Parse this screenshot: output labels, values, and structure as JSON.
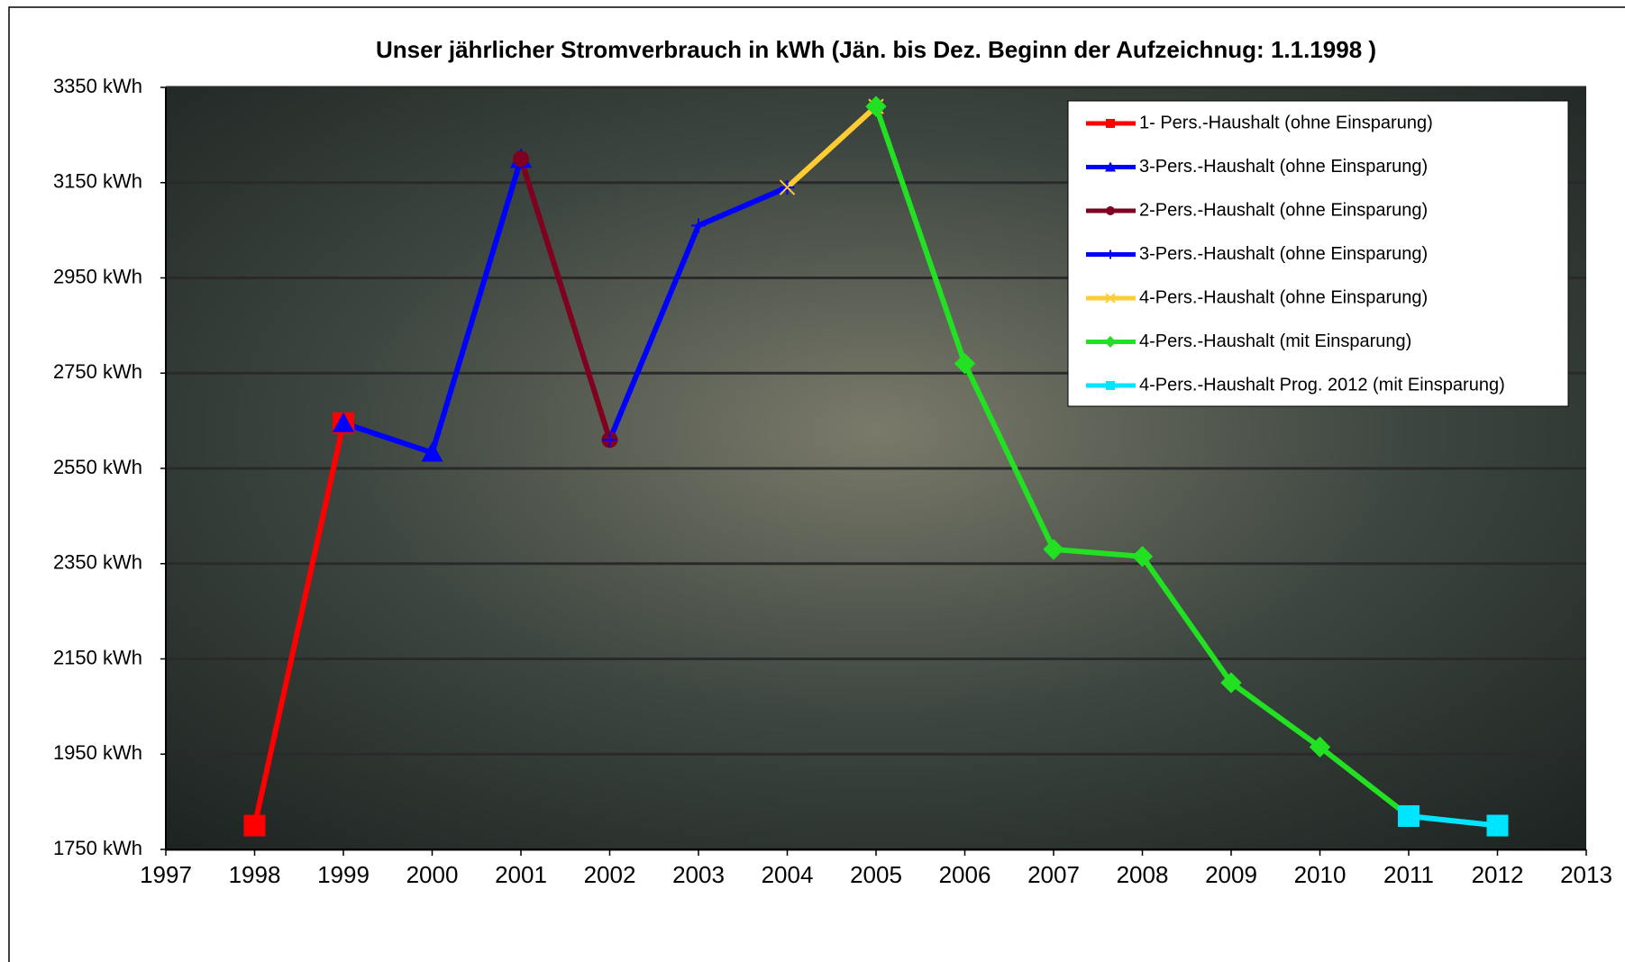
{
  "chart_data": {
    "type": "line",
    "title": "Unser jährlicher Stromverbrauch in kWh (Jän. bis Dez.  Beginn der Aufzeichnug: 1.1.1998 )",
    "x": [
      1998,
      1999,
      2000,
      2001,
      2002,
      2003,
      2004,
      2005,
      2006,
      2007,
      2008,
      2009,
      2010,
      2011,
      2012
    ],
    "xlim": [
      1997,
      2013
    ],
    "xticks": [
      1997,
      1998,
      1999,
      2000,
      2001,
      2002,
      2003,
      2004,
      2005,
      2006,
      2007,
      2008,
      2009,
      2010,
      2011,
      2012,
      2013
    ],
    "ylim": [
      1750,
      3350
    ],
    "yticks": [
      {
        "value": 1750,
        "label": "1750 kWh"
      },
      {
        "value": 1950,
        "label": "1950 kWh"
      },
      {
        "value": 2150,
        "label": "2150 kWh"
      },
      {
        "value": 2350,
        "label": "2350 kWh"
      },
      {
        "value": 2550,
        "label": "2550 kWh"
      },
      {
        "value": 2750,
        "label": "2750 kWh"
      },
      {
        "value": 2950,
        "label": "2950 kWh"
      },
      {
        "value": 3150,
        "label": "3150 kWh"
      },
      {
        "value": 3350,
        "label": "3350 kWh"
      }
    ],
    "grid": true,
    "legend": "top-right",
    "series": [
      {
        "name": "1- Pers.-Haushalt (ohne Einsparung)",
        "color": "#ff0000",
        "marker": "square",
        "values": [
          1800,
          2645,
          null,
          null,
          null,
          null,
          null,
          null,
          null,
          null,
          null,
          null,
          null,
          null,
          null
        ]
      },
      {
        "name": "3-Pers.-Haushalt (ohne Einsparung)",
        "color": "#0000ff",
        "marker": "triangle",
        "values": [
          null,
          2645,
          2583,
          3200,
          null,
          null,
          null,
          null,
          null,
          null,
          null,
          null,
          null,
          null,
          null
        ]
      },
      {
        "name": "2-Pers.-Haushalt (ohne Einsparung)",
        "color": "#800020",
        "marker": "circle",
        "values": [
          null,
          null,
          null,
          3200,
          2610,
          null,
          null,
          null,
          null,
          null,
          null,
          null,
          null,
          null,
          null
        ]
      },
      {
        "name": "3-Pers.-Haushalt (ohne Einsparung)",
        "color": "#0000ff",
        "marker": "plus",
        "values": [
          null,
          null,
          null,
          null,
          2610,
          3060,
          3140,
          null,
          null,
          null,
          null,
          null,
          null,
          null,
          null
        ]
      },
      {
        "name": "4-Pers.-Haushalt (ohne Einsparung)",
        "color": "#ffcc33",
        "marker": "cross",
        "values": [
          null,
          null,
          null,
          null,
          null,
          null,
          3140,
          3310,
          null,
          null,
          null,
          null,
          null,
          null,
          null
        ]
      },
      {
        "name": "4-Pers.-Haushalt (mit Einsparung)",
        "color": "#22e022",
        "marker": "diamond",
        "values": [
          null,
          null,
          null,
          null,
          null,
          null,
          null,
          3310,
          2770,
          2380,
          2365,
          2100,
          1965,
          1820,
          null
        ]
      },
      {
        "name": "4-Pers.-Haushalt Prog. 2012 (mit Einsparung)",
        "color": "#00e5ff",
        "marker": "square",
        "values": [
          null,
          null,
          null,
          null,
          null,
          null,
          null,
          null,
          null,
          null,
          null,
          null,
          null,
          1820,
          1800
        ]
      }
    ]
  }
}
